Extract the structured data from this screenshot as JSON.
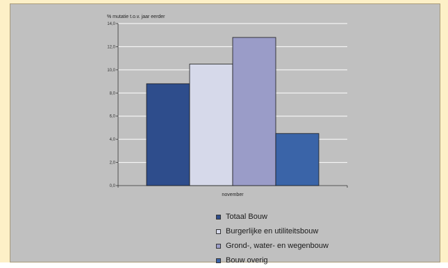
{
  "chart_data": {
    "type": "bar",
    "title": "% mutatie t.o.v. jaar eerder",
    "xlabel": "",
    "ylabel": "",
    "categories": [
      "november"
    ],
    "ylim": [
      0,
      14
    ],
    "yticks": [
      0,
      2,
      4,
      6,
      8,
      10,
      12,
      14
    ],
    "ytick_labels": [
      "0,0",
      "2,0",
      "4,0",
      "6,0",
      "8,0",
      "10,0",
      "12,0",
      "14,0"
    ],
    "grid": true,
    "legend_position": "bottom",
    "series": [
      {
        "name": "Totaal Bouw",
        "values": [
          8.8
        ],
        "color": "#2e4d8c"
      },
      {
        "name": "Burgerlijke en utiliteitsbouw",
        "values": [
          10.5
        ],
        "color": "#d6d9ea"
      },
      {
        "name": "Grond-, water- en wegenbouw",
        "values": [
          12.8
        ],
        "color": "#9a9cc8"
      },
      {
        "name": "Bouw overig",
        "values": [
          4.5
        ],
        "color": "#3a64a8"
      }
    ]
  },
  "colors": {
    "page_background": "#fdf0c7",
    "panel_background": "#c0c0c0",
    "gridline": "#ffffff",
    "axis": "#333333"
  }
}
